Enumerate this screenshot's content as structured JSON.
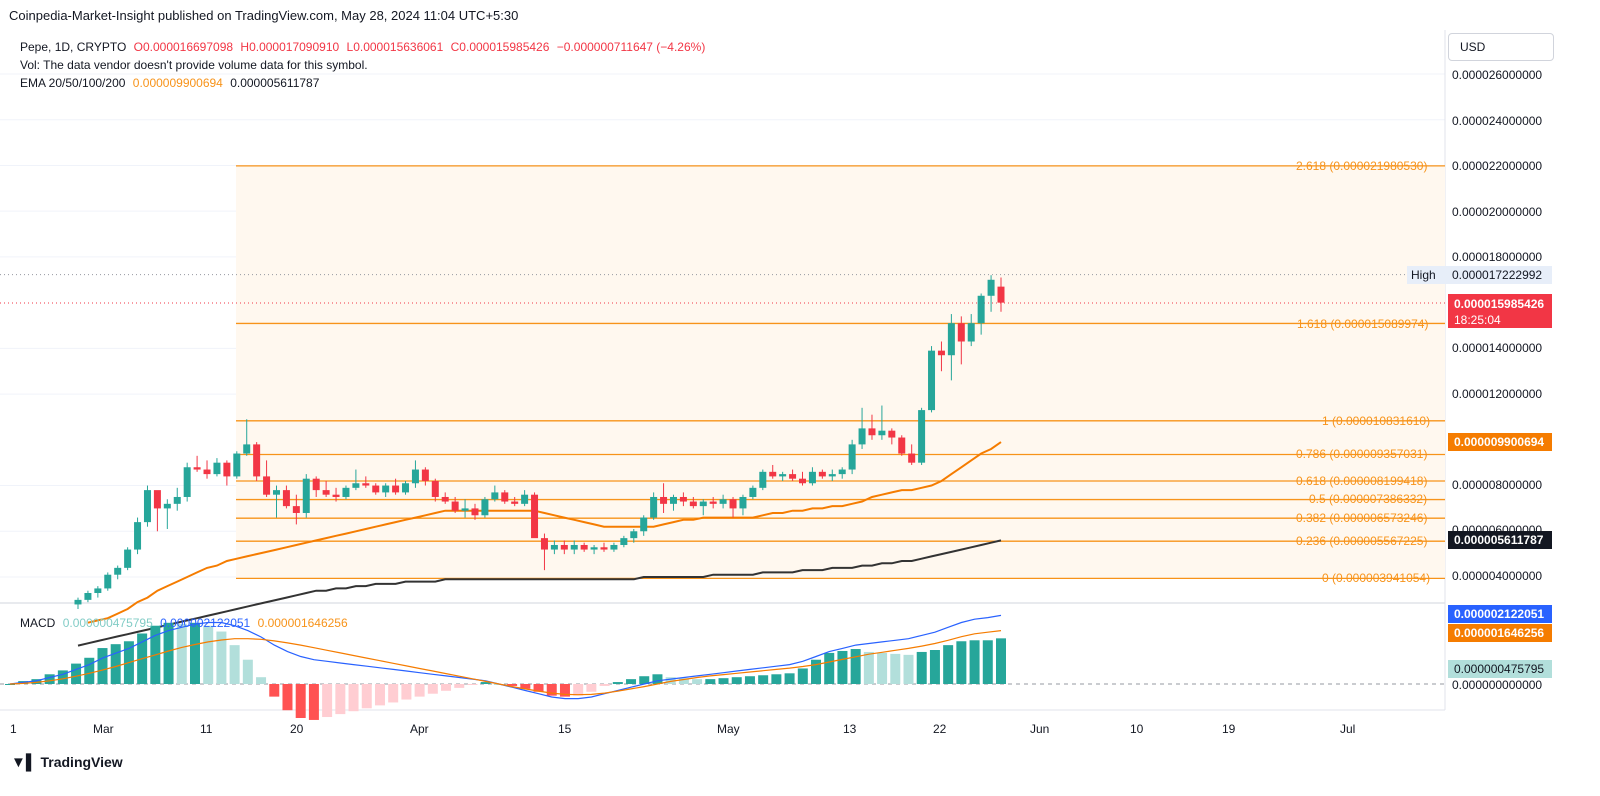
{
  "header": {
    "credit": "Coinpedia-Market-Insight published on TradingView.com, May 28, 2024 11:04 UTC+5:30"
  },
  "legend": {
    "symbol": "Pepe, 1D, CRYPTO",
    "open": "O0.000016697098",
    "high": "H0.000017090910",
    "low": "L0.000015636061",
    "close": "C0.000015985426",
    "change": "−0.000000711647 (−4.26%)",
    "volume_note": "Vol: The data vendor doesn't provide volume data for this symbol.",
    "ema_label": "EMA 20/50/100/200",
    "ema_val1": "0.000009900694",
    "ema_val2": "0.000005611787",
    "macd_label": "MACD",
    "macd_hist": "0.000000475795",
    "macd_line": "0.000002122051",
    "macd_signal": "0.000001646256"
  },
  "currency_button": "USD",
  "price_axis": [
    {
      "label": "0.000026000000",
      "value": 2.6e-05
    },
    {
      "label": "0.000024000000",
      "value": 2.4e-05
    },
    {
      "label": "0.000022000000",
      "value": 2.2e-05
    },
    {
      "label": "0.000020000000",
      "value": 2e-05
    },
    {
      "label": "0.000018000000",
      "value": 1.8e-05
    },
    {
      "label": "0.000014000000",
      "value": 1.4e-05
    },
    {
      "label": "0.000012000000",
      "value": 1.2e-05
    },
    {
      "label": "0.000008000000",
      "value": 8e-06
    },
    {
      "label": "0.000006000000",
      "value": 6e-06
    },
    {
      "label": "0.000004000000",
      "value": 4e-06
    }
  ],
  "high_marker": {
    "label": "High",
    "value": "0.000017222992"
  },
  "last_price": {
    "value": "0.000015985426",
    "countdown": "18:25:04",
    "color": "#f23645"
  },
  "ema_tags": {
    "ema_fast": "0.000009900694",
    "ema_slow": "0.000005611787"
  },
  "macd_tags": {
    "line": "0.000002122051",
    "signal": "0.000001646256",
    "hist": "0.000000475795",
    "zero": "0.000000000000"
  },
  "fib_levels": [
    {
      "label": "2.618 (0.000021980530)",
      "value": 2.198053e-05
    },
    {
      "label": "1.618 (0.000015089974)",
      "value": 1.5089974e-05
    },
    {
      "label": "1 (0.000010831610)",
      "value": 1.083161e-05
    },
    {
      "label": "0.786 (0.000009357031)",
      "value": 9.357031e-06
    },
    {
      "label": "0.618 (0.000008199418)",
      "value": 8.199418e-06
    },
    {
      "label": "0.5 (0.000007386332)",
      "value": 7.386332e-06
    },
    {
      "label": "0.382 (0.000006573246)",
      "value": 6.573246e-06
    },
    {
      "label": "0.236 (0.000005567225)",
      "value": 5.567225e-06
    },
    {
      "label": "0 (0.000003941054)",
      "value": 3.941054e-06
    }
  ],
  "time_axis": [
    "1",
    "Mar",
    "11",
    "20",
    "Apr",
    "15",
    "May",
    "13",
    "22",
    "Jun",
    "10",
    "19",
    "Jul"
  ],
  "footer": {
    "brand": "TradingView"
  },
  "colors": {
    "up": "#26a69a",
    "down": "#f23645",
    "fib": "#f7931a",
    "ema_fast": "#f57c00",
    "ema_slow": "#333333",
    "macd_line": "#2962ff",
    "signal_line": "#f57c00"
  },
  "chart_data": {
    "type": "candlestick",
    "series": [
      {
        "name": "Pepe, 1D, CRYPTO",
        "values": [
          [
            2.8e-06,
            3.1e-06,
            2.6e-06,
            3e-06
          ],
          [
            3e-06,
            3.4e-06,
            2.9e-06,
            3.3e-06
          ],
          [
            3.3e-06,
            3.6e-06,
            3.1e-06,
            3.5e-06
          ],
          [
            3.5e-06,
            4.2e-06,
            3.4e-06,
            4.1e-06
          ],
          [
            4.1e-06,
            4.5e-06,
            3.9e-06,
            4.4e-06
          ],
          [
            4.4e-06,
            5.3e-06,
            4.3e-06,
            5.2e-06
          ],
          [
            5.2e-06,
            6.6e-06,
            5e-06,
            6.4e-06
          ],
          [
            6.4e-06,
            8e-06,
            6.2e-06,
            7.8e-06
          ],
          [
            7.8e-06,
            7.7e-06,
            6e-06,
            7e-06
          ],
          [
            7e-06,
            7.4e-06,
            6.1e-06,
            7.2e-06
          ],
          [
            7.2e-06,
            7.9e-06,
            6.9e-06,
            7.5e-06
          ],
          [
            7.5e-06,
            9e-06,
            7.3e-06,
            8.8e-06
          ],
          [
            8.8e-06,
            9.3e-06,
            8.6e-06,
            8.7e-06
          ],
          [
            8.7e-06,
            9.1e-06,
            8.3e-06,
            8.5e-06
          ],
          [
            8.5e-06,
            9.2e-06,
            8.4e-06,
            9e-06
          ],
          [
            9e-06,
            9.1e-06,
            8e-06,
            8.4e-06
          ],
          [
            8.4e-06,
            9.5e-06,
            8.3e-06,
            9.4e-06
          ],
          [
            9.4e-06,
            1.09e-05,
            9.3e-06,
            9.8e-06
          ],
          [
            9.8e-06,
            9.9e-06,
            8.2e-06,
            8.4e-06
          ],
          [
            8.4e-06,
            9.1e-06,
            7.5e-06,
            7.6e-06
          ],
          [
            7.6e-06,
            8e-06,
            6.6e-06,
            7.8e-06
          ],
          [
            7.8e-06,
            8e-06,
            7e-06,
            7.1e-06
          ],
          [
            7.1e-06,
            7.6e-06,
            6.3e-06,
            6.8e-06
          ],
          [
            6.8e-06,
            8.5e-06,
            6.6e-06,
            8.3e-06
          ],
          [
            8.3e-06,
            8.4e-06,
            7.5e-06,
            7.8e-06
          ],
          [
            7.8e-06,
            8.2e-06,
            7.5e-06,
            7.6e-06
          ],
          [
            7.6e-06,
            7.9e-06,
            7.3e-06,
            7.5e-06
          ],
          [
            7.5e-06,
            8e-06,
            7.4e-06,
            7.9e-06
          ],
          [
            7.9e-06,
            8.7e-06,
            7.8e-06,
            8.1e-06
          ],
          [
            8.1e-06,
            8.4e-06,
            7.9e-06,
            8e-06
          ],
          [
            8e-06,
            8.1e-06,
            7.6e-06,
            7.7e-06
          ],
          [
            7.7e-06,
            8.1e-06,
            7.5e-06,
            8e-06
          ],
          [
            8e-06,
            8.3e-06,
            7.6e-06,
            7.7e-06
          ],
          [
            7.7e-06,
            8.2e-06,
            7.6e-06,
            8.1e-06
          ],
          [
            8.1e-06,
            9.1e-06,
            7.9e-06,
            8.7e-06
          ],
          [
            8.7e-06,
            8.8e-06,
            8e-06,
            8.2e-06
          ],
          [
            8.2e-06,
            8.3e-06,
            7.3e-06,
            7.5e-06
          ],
          [
            7.5e-06,
            7.7e-06,
            7.2e-06,
            7.3e-06
          ],
          [
            7.3e-06,
            7.5e-06,
            6.8e-06,
            6.9e-06
          ],
          [
            6.9e-06,
            7.4e-06,
            6.6e-06,
            7e-06
          ],
          [
            7e-06,
            7.2e-06,
            6.5e-06,
            6.7e-06
          ],
          [
            6.7e-06,
            7.5e-06,
            6.6e-06,
            7.4e-06
          ],
          [
            7.4e-06,
            8e-06,
            7.3e-06,
            7.7e-06
          ],
          [
            7.7e-06,
            7.8e-06,
            7.2e-06,
            7.3e-06
          ],
          [
            7.3e-06,
            7.5e-06,
            7.1e-06,
            7.2e-06
          ],
          [
            7.2e-06,
            7.8e-06,
            7.1e-06,
            7.6e-06
          ],
          [
            7.6e-06,
            7.7e-06,
            6e-06,
            5.7e-06
          ],
          [
            5.7e-06,
            5.9e-06,
            4.3e-06,
            5.2e-06
          ],
          [
            5.2e-06,
            5.6e-06,
            5e-06,
            5.4e-06
          ],
          [
            5.4e-06,
            5.6e-06,
            5e-06,
            5.2e-06
          ],
          [
            5.2e-06,
            5.6e-06,
            5e-06,
            5.4e-06
          ],
          [
            5.4e-06,
            5.5e-06,
            5.1e-06,
            5.2e-06
          ],
          [
            5.2e-06,
            5.4e-06,
            5e-06,
            5.3e-06
          ],
          [
            5.3e-06,
            5.5e-06,
            5.1e-06,
            5.2e-06
          ],
          [
            5.2e-06,
            5.5e-06,
            5.1e-06,
            5.4e-06
          ],
          [
            5.4e-06,
            5.8e-06,
            5.3e-06,
            5.7e-06
          ],
          [
            5.7e-06,
            6.1e-06,
            5.5e-06,
            6e-06
          ],
          [
            6e-06,
            6.7e-06,
            5.8e-06,
            6.6e-06
          ],
          [
            6.6e-06,
            7.7e-06,
            6.5e-06,
            7.5e-06
          ],
          [
            7.5e-06,
            8.1e-06,
            6.8e-06,
            7.2e-06
          ],
          [
            7.2e-06,
            7.6e-06,
            6.9e-06,
            7.5e-06
          ],
          [
            7.5e-06,
            7.7e-06,
            7.1e-06,
            7.3e-06
          ],
          [
            7.3e-06,
            7.5e-06,
            7e-06,
            7.1e-06
          ],
          [
            7.1e-06,
            7.4e-06,
            6.7e-06,
            7.3e-06
          ],
          [
            7.3e-06,
            7.5e-06,
            7e-06,
            7.2e-06
          ],
          [
            7.2e-06,
            7.6e-06,
            7e-06,
            7.4e-06
          ],
          [
            7.4e-06,
            7.5e-06,
            6.6e-06,
            7e-06
          ],
          [
            7e-06,
            7.6e-06,
            6.7e-06,
            7.5e-06
          ],
          [
            7.5e-06,
            8e-06,
            7.4e-06,
            7.9e-06
          ],
          [
            7.9e-06,
            8.7e-06,
            7.8e-06,
            8.6e-06
          ],
          [
            8.6e-06,
            8.9e-06,
            8.3e-06,
            8.4e-06
          ],
          [
            8.4e-06,
            8.6e-06,
            8.2e-06,
            8.5e-06
          ],
          [
            8.5e-06,
            8.7e-06,
            8.2e-06,
            8.3e-06
          ],
          [
            8.3e-06,
            8.6e-06,
            8e-06,
            8.1e-06
          ],
          [
            8.1e-06,
            8.8e-06,
            8e-06,
            8.6e-06
          ],
          [
            8.6e-06,
            8.7e-06,
            8.3e-06,
            8.4e-06
          ],
          [
            8.4e-06,
            8.7e-06,
            8.2e-06,
            8.5e-06
          ],
          [
            8.5e-06,
            8.8e-06,
            8.3e-06,
            8.7e-06
          ],
          [
            8.7e-06,
            1e-05,
            8.5e-06,
            9.8e-06
          ],
          [
            9.8e-06,
            1.14e-05,
            9.6e-06,
            1.05e-05
          ],
          [
            1.05e-05,
            1.11e-05,
            1e-05,
            1.02e-05
          ],
          [
            1.02e-05,
            1.15e-05,
            1e-05,
            1.04e-05
          ],
          [
            1.04e-05,
            1.05e-05,
            9.8e-06,
            1.01e-05
          ],
          [
            1.01e-05,
            1.02e-05,
            9.3e-06,
            9.4e-06
          ],
          [
            9.4e-06,
            9.8e-06,
            8.9e-06,
            9e-06
          ],
          [
            9e-06,
            1.14e-05,
            8.9e-06,
            1.13e-05
          ],
          [
            1.13e-05,
            1.41e-05,
            1.12e-05,
            1.39e-05
          ],
          [
            1.39e-05,
            1.43e-05,
            1.3e-05,
            1.37e-05
          ],
          [
            1.37e-05,
            1.55e-05,
            1.26e-05,
            1.51e-05
          ],
          [
            1.51e-05,
            1.54e-05,
            1.33e-05,
            1.43e-05
          ],
          [
            1.43e-05,
            1.55e-05,
            1.41e-05,
            1.51e-05
          ],
          [
            1.51e-05,
            1.64e-05,
            1.46e-05,
            1.63e-05
          ],
          [
            1.63e-05,
            1.72e-05,
            1.56e-05,
            1.7e-05
          ],
          [
            1.67e-05,
            1.71e-05,
            1.56e-05,
            1.6e-05
          ]
        ]
      },
      {
        "name": "EMA 20/50/100/200",
        "values": [
          2e-06,
          2.1e-06,
          2.2e-06,
          2.4e-06,
          2.6e-06,
          2.9e-06,
          3.1e-06,
          3.4e-06,
          3.6e-06,
          3.8e-06,
          4e-06,
          4.2e-06,
          4.4e-06,
          4.5e-06,
          4.7e-06,
          4.8e-06,
          4.9e-06,
          5e-06,
          5.1e-06,
          5.2e-06,
          5.3e-06,
          5.4e-06,
          5.5e-06,
          5.6e-06,
          5.7e-06,
          5.8e-06,
          5.9e-06,
          6e-06,
          6.1e-06,
          6.2e-06,
          6.3e-06,
          6.4e-06,
          6.5e-06,
          6.6e-06,
          6.7e-06,
          6.8e-06,
          6.9e-06,
          6.9e-06,
          6.9e-06,
          6.9e-06,
          6.9e-06,
          6.9e-06,
          6.9e-06,
          6.9e-06,
          6.9e-06,
          6.9e-06,
          6.8e-06,
          6.7e-06,
          6.6e-06,
          6.5e-06,
          6.4e-06,
          6.3e-06,
          6.2e-06,
          6.2e-06,
          6.2e-06,
          6.2e-06,
          6.2e-06,
          6.2e-06,
          6.3e-06,
          6.4e-06,
          6.5e-06,
          6.5e-06,
          6.6e-06,
          6.6e-06,
          6.6e-06,
          6.6e-06,
          6.6e-06,
          6.6e-06,
          6.7e-06,
          6.8e-06,
          6.8e-06,
          6.9e-06,
          6.9e-06,
          7e-06,
          7e-06,
          7.1e-06,
          7.1e-06,
          7.2e-06,
          7.3e-06,
          7.5e-06,
          7.6e-06,
          7.7e-06,
          7.8e-06,
          7.8e-06,
          7.9e-06,
          8e-06,
          8.2e-06,
          8.5e-06,
          8.8e-06,
          9.1e-06,
          9.4e-06,
          9.6e-06,
          9.9e-06
        ]
      },
      {
        "name": "EMA 200",
        "values": [
          1e-06,
          1.1e-06,
          1.2e-06,
          1.3e-06,
          1.4e-06,
          1.5e-06,
          1.6e-06,
          1.7e-06,
          1.8e-06,
          1.9e-06,
          2e-06,
          2.1e-06,
          2.2e-06,
          2.3e-06,
          2.4e-06,
          2.5e-06,
          2.6e-06,
          2.7e-06,
          2.8e-06,
          2.9e-06,
          3e-06,
          3.1e-06,
          3.2e-06,
          3.3e-06,
          3.4e-06,
          3.4e-06,
          3.5e-06,
          3.5e-06,
          3.6e-06,
          3.6e-06,
          3.7e-06,
          3.7e-06,
          3.7e-06,
          3.8e-06,
          3.8e-06,
          3.8e-06,
          3.8e-06,
          3.9e-06,
          3.9e-06,
          3.9e-06,
          3.9e-06,
          3.9e-06,
          3.9e-06,
          3.9e-06,
          3.9e-06,
          3.9e-06,
          3.9e-06,
          3.9e-06,
          3.9e-06,
          3.9e-06,
          3.9e-06,
          3.9e-06,
          3.9e-06,
          3.9e-06,
          3.9e-06,
          3.9e-06,
          3.9e-06,
          4e-06,
          4e-06,
          4e-06,
          4e-06,
          4e-06,
          4e-06,
          4e-06,
          4.1e-06,
          4.1e-06,
          4.1e-06,
          4.1e-06,
          4.1e-06,
          4.2e-06,
          4.2e-06,
          4.2e-06,
          4.2e-06,
          4.3e-06,
          4.3e-06,
          4.3e-06,
          4.4e-06,
          4.4e-06,
          4.4e-06,
          4.5e-06,
          4.5e-06,
          4.6e-06,
          4.6e-06,
          4.7e-06,
          4.7e-06,
          4.8e-06,
          4.9e-06,
          5e-06,
          5.1e-06,
          5.2e-06,
          5.3e-06,
          5.4e-06,
          5.5e-06,
          5.6e-06
        ]
      }
    ],
    "macd": {
      "line": [
        0.0,
        5e-08,
        1e-07,
        2e-07,
        3e-07,
        4.5e-07,
        6e-07,
        8e-07,
        9.5e-07,
        1.1e-06,
        1.3e-06,
        1.5e-06,
        1.65e-06,
        1.75e-06,
        1.85e-06,
        1.9e-06,
        1.9e-06,
        1.8e-06,
        1.65e-06,
        1.45e-06,
        1.2e-06,
        1e-06,
        8.5e-07,
        7.5e-07,
        7e-07,
        6.5e-07,
        6e-07,
        5.5e-07,
        5e-07,
        4.5e-07,
        4e-07,
        3.5e-07,
        3e-07,
        2.5e-07,
        2e-07,
        1.5e-07,
        1e-07,
        0.0,
        -1e-07,
        -2e-07,
        -3e-07,
        -4e-07,
        -4.5e-07,
        -4.5e-07,
        -4e-07,
        -3e-07,
        -2e-07,
        -1e-07,
        0.0,
        1e-07,
        1.5e-07,
        2e-07,
        2.5e-07,
        3e-07,
        3.5e-07,
        4e-07,
        4.5e-07,
        5e-07,
        5.5e-07,
        6e-07,
        7e-07,
        8.5e-07,
        1e-06,
        1.1e-06,
        1.2e-06,
        1.25e-06,
        1.3e-06,
        1.35e-06,
        1.4e-06,
        1.5e-06,
        1.6e-06,
        1.75e-06,
        1.9e-06,
        2e-06,
        2.05e-06,
        2.12e-06
      ],
      "signal": [
        0.0,
        2e-08,
        5e-08,
        1e-07,
        1.6e-07,
        2.4e-07,
        3.3e-07,
        4.3e-07,
        5.4e-07,
        6.6e-07,
        7.8e-07,
        9e-07,
        1.02e-06,
        1.13e-06,
        1.22e-06,
        1.3e-06,
        1.36e-06,
        1.4e-06,
        1.4e-06,
        1.38e-06,
        1.33e-06,
        1.27e-06,
        1.2e-06,
        1.12e-06,
        1.04e-06,
        9.6e-07,
        8.8e-07,
        8e-07,
        7.2e-07,
        6.4e-07,
        5.6e-07,
        4.8e-07,
        4e-07,
        3.2e-07,
        2.4e-07,
        1.6e-07,
        8e-08,
        0.0,
        -8e-08,
        -1.5e-07,
        -2.2e-07,
        -2.8e-07,
        -3.2e-07,
        -3.3e-07,
        -3.2e-07,
        -2.8e-07,
        -2.2e-07,
        -1.5e-07,
        -8e-08,
        0.0,
        8e-08,
        1.4e-07,
        2e-07,
        2.5e-07,
        2.9e-07,
        3.3e-07,
        3.7e-07,
        4.1e-07,
        4.5e-07,
        4.9e-07,
        5.4e-07,
        6e-07,
        6.8e-07,
        7.6e-07,
        8.4e-07,
        9.2e-07,
        9.8e-07,
        1.04e-06,
        1.1e-06,
        1.17e-06,
        1.25e-06,
        1.35e-06,
        1.46e-06,
        1.55e-06,
        1.6e-06,
        1.65e-06
      ]
    }
  }
}
